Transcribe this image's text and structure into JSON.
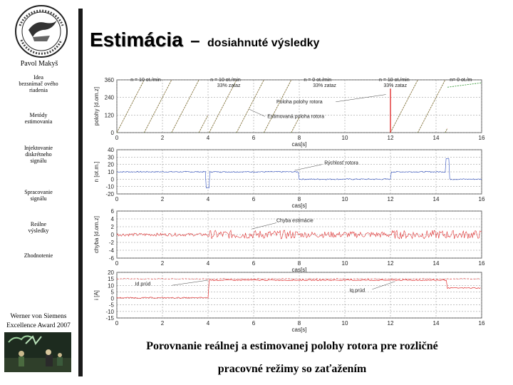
{
  "title": {
    "main": "Estimácia",
    "dash": "–",
    "sub": "dosiahnuté výsledky"
  },
  "author": "Pavol Makyš",
  "nav": [
    {
      "lines": [
        "Idea",
        "bezsnímač ového",
        "riadenia"
      ]
    },
    {
      "lines": [
        "Metódy",
        "estimovania"
      ]
    },
    {
      "lines": [
        "Injektovanie",
        "diskrétneho",
        "signálu"
      ]
    },
    {
      "lines": [
        "Spracovanie",
        "signálu"
      ]
    },
    {
      "lines": [
        "Reálne",
        "výsledky"
      ]
    },
    {
      "lines": [
        "Zhodnotenie"
      ]
    }
  ],
  "award": {
    "line1": "Werner von Siemens",
    "line2": "Excellence Award 2007"
  },
  "caption": {
    "line1": "Porovnanie reálnej a estimovanej polohy rotora pre rozličné",
    "line2": "pracovné režimy so zaťažením"
  },
  "colors": {
    "real": "#3a9a3a",
    "estimate": "#e03030",
    "speed": "#3050c0",
    "grid": "#888888"
  },
  "chart_data": [
    {
      "type": "line",
      "ylabel": "polohy [d.om.z]",
      "xlabel": "cas[s]",
      "xlim": [
        0,
        16
      ],
      "ylim": [
        0,
        360
      ],
      "yticks": [
        0,
        120,
        240,
        360
      ],
      "xticks": [
        0,
        2,
        4,
        6,
        8,
        10,
        12,
        14,
        16
      ],
      "annotations": [
        "n = 10 ot./min",
        "n = 10 ot./min 33% zataz",
        "n = 0 ot./min 33% zataz",
        "n = 10 ot./min 33% zataz",
        "n= 0 ot./m",
        "Poloha polohy rotora",
        "Estimovaná poloha rotora"
      ]
    },
    {
      "type": "line",
      "ylabel": "n [ot.m.]",
      "xlabel": "cas[s]",
      "xlim": [
        0,
        16
      ],
      "ylim": [
        -20,
        40
      ],
      "yticks": [
        -20,
        -10,
        0,
        10,
        20,
        30,
        40
      ],
      "xticks": [
        0,
        2,
        4,
        6,
        8,
        10,
        12,
        14,
        16
      ],
      "annotations": [
        "Rýchlosť rotora"
      ]
    },
    {
      "type": "line",
      "ylabel": "chyba [d.om.z]",
      "xlabel": "cas[s]",
      "xlim": [
        0,
        16
      ],
      "ylim": [
        -6,
        6
      ],
      "yticks": [
        -6,
        -4,
        -2,
        0,
        2,
        4,
        6
      ],
      "xticks": [
        0,
        2,
        4,
        6,
        8,
        10,
        12,
        14,
        16
      ],
      "annotations": [
        "Chyba estimácie"
      ]
    },
    {
      "type": "line",
      "ylabel": "i [A]",
      "xlabel": "cas[s]",
      "xlim": [
        0,
        16
      ],
      "ylim": [
        -15,
        20
      ],
      "yticks": [
        -15,
        -10,
        -5,
        0,
        5,
        10,
        15,
        20
      ],
      "xticks": [
        0,
        2,
        4,
        6,
        8,
        10,
        12,
        14,
        16
      ],
      "annotations": [
        "Id prúd",
        "Iq prúd"
      ]
    }
  ]
}
